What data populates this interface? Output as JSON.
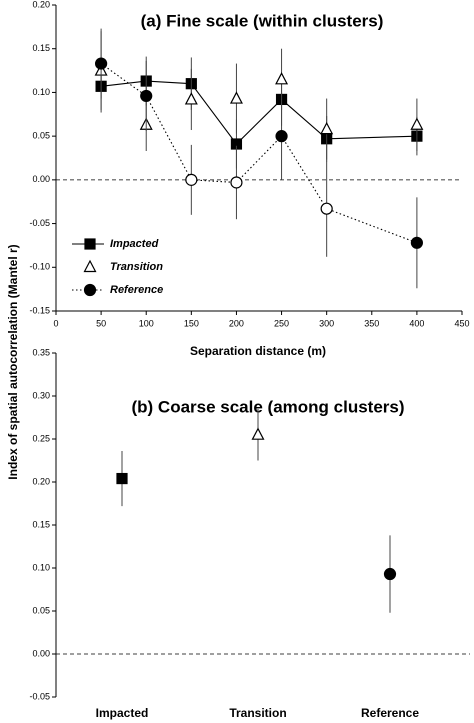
{
  "chart_data": [
    {
      "type": "line",
      "title": "(a) Fine scale (within clusters)",
      "xlabel": "Separation distance (m)",
      "ylabel": "Index of spatial autocorrelation (Mantel r)",
      "xlim": [
        0,
        450
      ],
      "xticks": [
        0,
        50,
        100,
        150,
        200,
        250,
        300,
        350,
        400,
        450
      ],
      "ylim": [
        -0.15,
        0.2
      ],
      "yticks": [
        {
          "value": -0.15,
          "label": "-0.15"
        },
        {
          "value": -0.1,
          "label": "-0.10"
        },
        {
          "value": -0.05,
          "label": "-0.05"
        },
        {
          "value": 0,
          "label": "0.00"
        },
        {
          "value": 0.05,
          "label": "0.05"
        },
        {
          "value": 0.1,
          "label": "0.10"
        },
        {
          "value": 0.15,
          "label": "0.15"
        },
        {
          "value": 0.2,
          "label": "0.20"
        }
      ],
      "series": [
        {
          "name": "Impacted",
          "color": "#000000",
          "marker": "square",
          "line": "solid",
          "x": [
            50,
            100,
            150,
            200,
            250,
            300,
            400
          ],
          "values": [
            0.107,
            0.113,
            0.11,
            0.041,
            0.092,
            0.047,
            0.05
          ],
          "errors": [
            0.03,
            0.028,
            0.03,
            0.028,
            0.03,
            0.026,
            0.022
          ],
          "open": [
            false,
            false,
            false,
            false,
            false,
            false,
            false
          ]
        },
        {
          "name": "Transition",
          "color": "#000000",
          "marker": "triangle",
          "line": "none",
          "x": [
            50,
            100,
            150,
            200,
            250,
            300,
            400
          ],
          "values": [
            0.125,
            0.063,
            0.092,
            0.093,
            0.115,
            0.058,
            0.063
          ],
          "errors": [
            0.045,
            0.03,
            0.035,
            0.04,
            0.035,
            0.035,
            0.03
          ],
          "open": [
            true,
            true,
            true,
            true,
            true,
            true,
            true
          ]
        },
        {
          "name": "Reference",
          "color": "#000000",
          "marker": "circle",
          "line": "dotted",
          "x": [
            50,
            100,
            150,
            200,
            250,
            300,
            400
          ],
          "values": [
            0.133,
            0.096,
            0.0,
            -0.003,
            0.05,
            -0.033,
            -0.072
          ],
          "errors": [
            0.04,
            0.04,
            0.04,
            0.042,
            0.05,
            0.055,
            0.052
          ],
          "open": [
            false,
            false,
            true,
            true,
            false,
            true,
            false
          ]
        }
      ]
    },
    {
      "type": "dot",
      "title": "(b) Coarse scale (among clusters)",
      "ylim": [
        -0.05,
        0.35
      ],
      "yticks": [
        {
          "value": -0.05,
          "label": "-0.05"
        },
        {
          "value": 0,
          "label": "0.00"
        },
        {
          "value": 0.05,
          "label": "0.05"
        },
        {
          "value": 0.1,
          "label": "0.10"
        },
        {
          "value": 0.15,
          "label": "0.15"
        },
        {
          "value": 0.2,
          "label": "0.20"
        },
        {
          "value": 0.25,
          "label": "0.25"
        },
        {
          "value": 0.3,
          "label": "0.30"
        },
        {
          "value": 0.35,
          "label": "0.35"
        }
      ],
      "categories": [
        "Impacted",
        "Transition",
        "Reference"
      ],
      "values": [
        0.204,
        0.255,
        0.093
      ],
      "errors": [
        0.032,
        0.03,
        0.045
      ],
      "markers": [
        "square",
        "triangle",
        "circle"
      ],
      "color": "#000000"
    }
  ]
}
